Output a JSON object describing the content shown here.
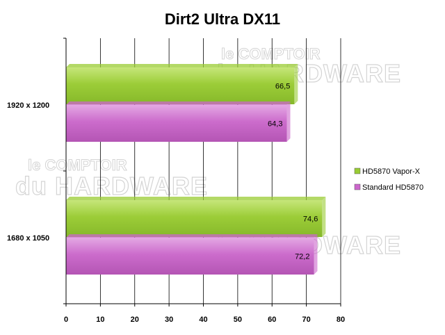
{
  "chart_data": {
    "type": "bar",
    "orientation": "horizontal",
    "title": "Dirt2 Ultra DX11",
    "categories": [
      "1920 x 1200",
      "1680 x 1050"
    ],
    "series": [
      {
        "name": "HD5870 Vapor-X",
        "values": [
          66.5,
          74.6
        ],
        "labels": [
          "66,5",
          "74,6"
        ],
        "color": "#99cc33"
      },
      {
        "name": "Standard HD5870",
        "values": [
          64.3,
          72.2
        ],
        "labels": [
          "64,3",
          "72,2"
        ],
        "color": "#cc66cc"
      }
    ],
    "xlim": [
      0,
      80
    ],
    "xticks": [
      0,
      10,
      20,
      30,
      40,
      50,
      60,
      70,
      80
    ],
    "grid": true,
    "legend_position": "right"
  },
  "watermark": {
    "line1": "le COMPTOIR",
    "line2": "du HARDWARE"
  }
}
